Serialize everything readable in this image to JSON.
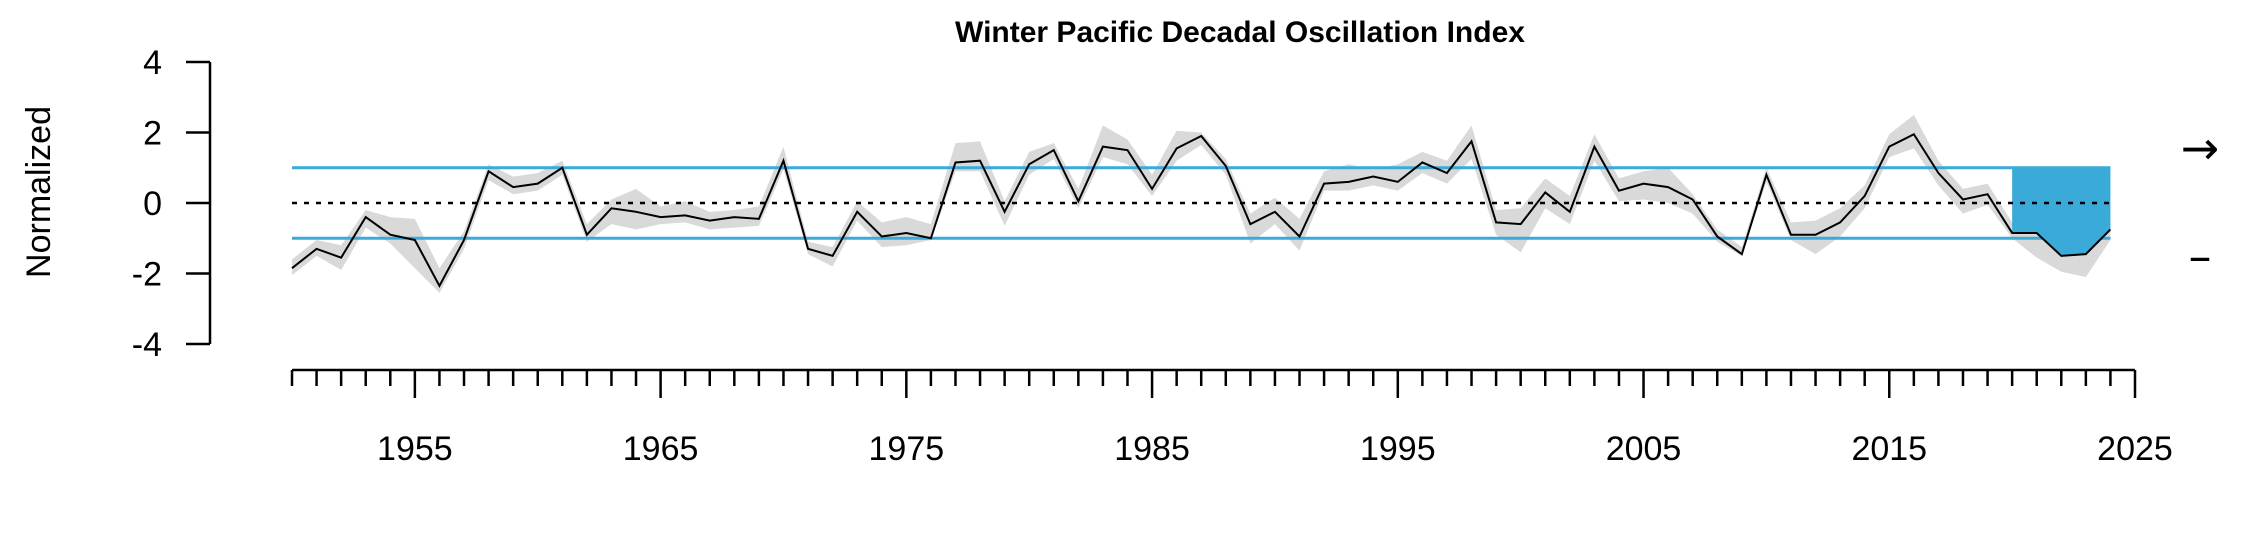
{
  "chart_data": {
    "type": "line",
    "title": "Winter Pacific Decadal Oscillation Index",
    "xlabel": "",
    "ylabel": "Normalized",
    "xlim": [
      1950,
      2025
    ],
    "ylim": [
      -4,
      4
    ],
    "y_ticks": [
      "4",
      "2",
      "0",
      "-2",
      "-4"
    ],
    "x_tick_labels": [
      "1955",
      "1965",
      "1975",
      "1985",
      "1995",
      "2005",
      "2015",
      "2025"
    ],
    "x_major_ticks": [
      1955,
      1965,
      1975,
      1985,
      1995,
      2005,
      2015,
      2025
    ],
    "grid": false,
    "reference_lines": {
      "mean": 0,
      "upper_sd": 1.0,
      "lower_sd": -1.0
    },
    "recent_period": {
      "start": 2020,
      "end": 2024
    },
    "trend_symbols": {
      "recent_trend": "→",
      "recent_mean": "–"
    },
    "colors": {
      "line": "#000000",
      "band": "#d9d9d9",
      "sd_line": "#3aabd9",
      "recent_fill": "#3aabd9"
    },
    "series": [
      {
        "x": [
          1950,
          1951,
          1952,
          1953,
          1954,
          1955,
          1956,
          1957,
          1958,
          1959,
          1960,
          1961,
          1962,
          1963,
          1964,
          1965,
          1966,
          1967,
          1968,
          1969,
          1970,
          1971,
          1972,
          1973,
          1974,
          1975,
          1976,
          1977,
          1978,
          1979,
          1980,
          1981,
          1982,
          1983,
          1984,
          1985,
          1986,
          1987,
          1988,
          1989,
          1990,
          1991,
          1992,
          1993,
          1994,
          1995,
          1996,
          1997,
          1998,
          1999,
          2000,
          2001,
          2002,
          2003,
          2004,
          2005,
          2006,
          2007,
          2008,
          2009,
          2010,
          2011,
          2012,
          2013,
          2014,
          2015,
          2016,
          2017,
          2018,
          2019,
          2020,
          2021,
          2022,
          2023,
          2024
        ],
        "values": [
          -1.85,
          -1.3,
          -1.55,
          -0.4,
          -0.9,
          -1.05,
          -2.35,
          -1.05,
          0.9,
          0.45,
          0.55,
          1.0,
          -0.9,
          -0.15,
          -0.25,
          -0.4,
          -0.35,
          -0.5,
          -0.4,
          -0.45,
          1.2,
          -1.3,
          -1.5,
          -0.25,
          -0.95,
          -0.85,
          -1.0,
          1.15,
          1.2,
          -0.25,
          1.1,
          1.5,
          0.05,
          1.6,
          1.5,
          0.4,
          1.55,
          1.9,
          1.05,
          -0.6,
          -0.25,
          -0.95,
          0.55,
          0.6,
          0.75,
          0.6,
          1.15,
          0.85,
          1.75,
          -0.55,
          -0.6,
          0.3,
          -0.25,
          1.6,
          0.35,
          0.55,
          0.45,
          0.1,
          -0.95,
          -1.45,
          0.8,
          -0.9,
          -0.9,
          -0.55,
          0.2,
          1.6,
          1.95,
          0.85,
          0.1,
          0.25,
          -0.85,
          -0.85,
          -1.5,
          -1.45,
          -0.75
        ],
        "lower": [
          -2.05,
          -1.5,
          -1.9,
          -0.7,
          -1.15,
          -1.85,
          -2.55,
          -1.3,
          0.65,
          0.25,
          0.35,
          0.8,
          -1.1,
          -0.6,
          -0.75,
          -0.6,
          -0.55,
          -0.75,
          -0.7,
          -0.65,
          0.95,
          -1.45,
          -1.8,
          -0.5,
          -1.25,
          -1.2,
          -1.05,
          0.9,
          0.9,
          -0.65,
          0.8,
          1.25,
          -0.15,
          1.3,
          1.1,
          0.2,
          1.2,
          1.65,
          0.8,
          -1.15,
          -0.6,
          -1.35,
          0.35,
          0.35,
          0.5,
          0.35,
          0.85,
          0.55,
          1.25,
          -0.9,
          -1.4,
          -0.15,
          -0.6,
          1.2,
          0.05,
          0.1,
          0.0,
          -0.3,
          -1.1,
          -1.5,
          0.6,
          -1.05,
          -1.45,
          -0.95,
          -0.15,
          1.3,
          1.55,
          0.5,
          -0.3,
          -0.05,
          -1.0,
          -1.55,
          -1.95,
          -2.1,
          -1.05
        ],
        "upper": [
          -1.6,
          -1.05,
          -1.2,
          -0.2,
          -0.4,
          -0.45,
          -1.85,
          -0.8,
          1.1,
          0.75,
          0.85,
          1.2,
          -0.6,
          0.1,
          0.4,
          -0.1,
          0.05,
          -0.25,
          -0.2,
          -0.1,
          1.6,
          -1.1,
          -1.25,
          0.05,
          -0.55,
          -0.4,
          -0.6,
          1.7,
          1.75,
          0.05,
          1.45,
          1.7,
          0.4,
          2.2,
          1.8,
          0.8,
          2.05,
          2.0,
          1.25,
          -0.3,
          0.15,
          -0.45,
          0.9,
          1.1,
          0.95,
          1.1,
          1.45,
          1.2,
          2.2,
          -0.2,
          -0.15,
          0.7,
          0.2,
          1.95,
          0.7,
          0.9,
          1.0,
          0.25,
          -0.75,
          -1.25,
          1.0,
          -0.55,
          -0.5,
          -0.15,
          0.5,
          1.95,
          2.5,
          1.2,
          0.4,
          0.55,
          -0.55,
          -0.55,
          -1.1,
          -0.9,
          -0.4
        ]
      }
    ]
  }
}
